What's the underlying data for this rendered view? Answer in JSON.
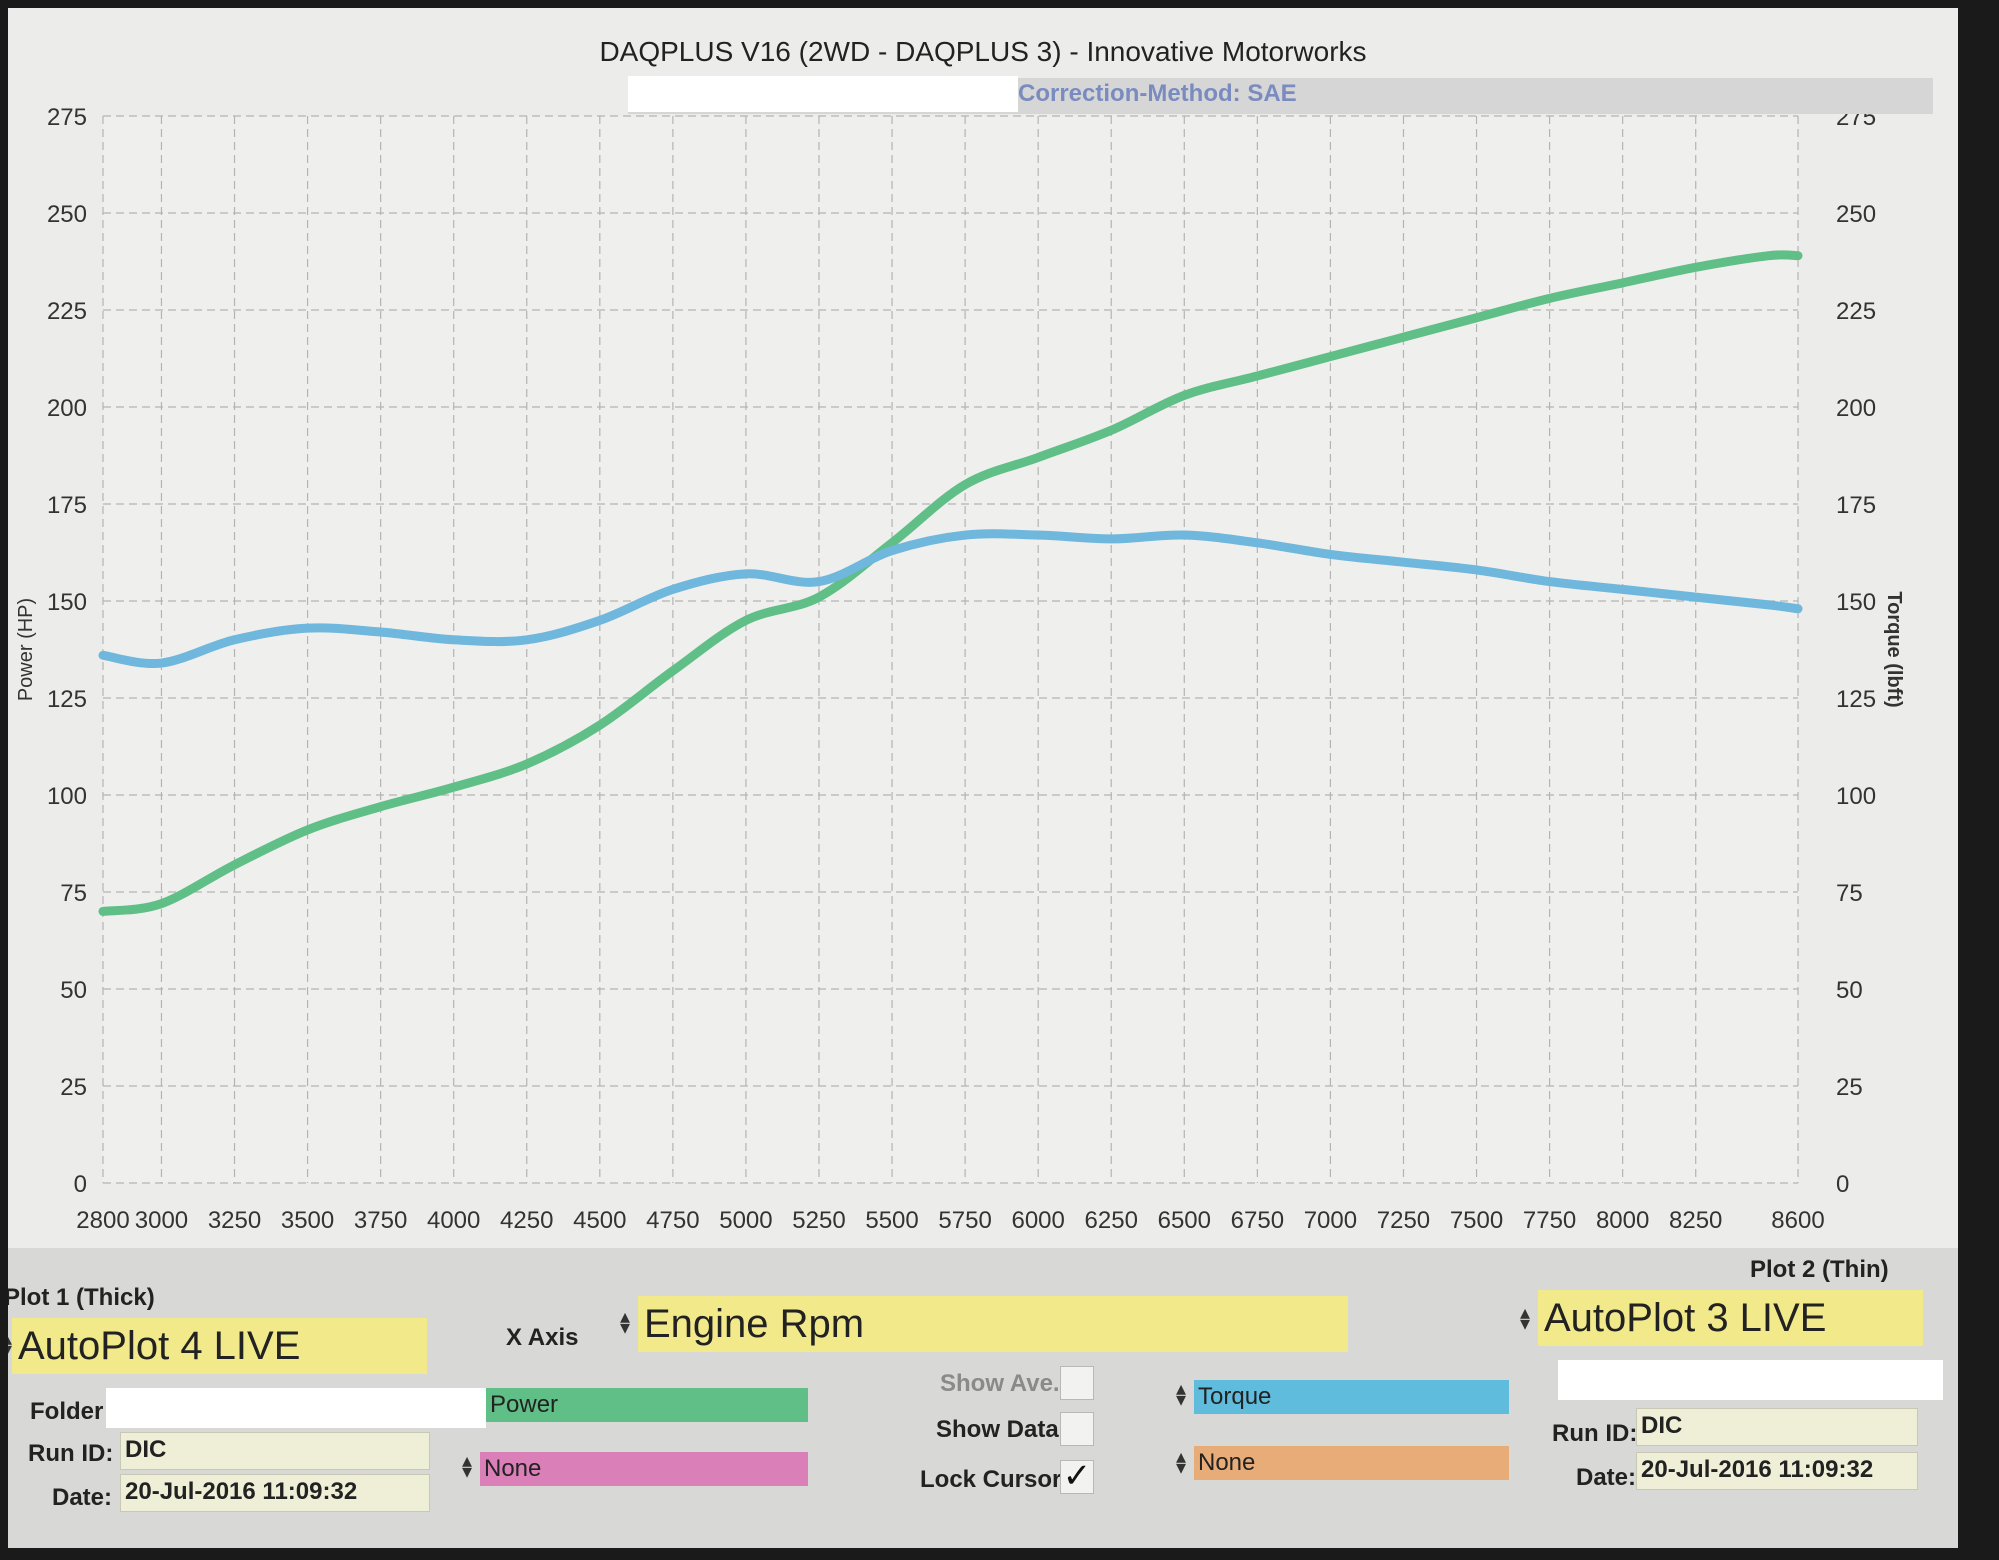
{
  "header": {
    "title": "DAQPLUS V16 (2WD - DAQPLUS 3) - Innovative Motorworks",
    "correction": "Correction-Method: SAE"
  },
  "chart_data": {
    "type": "line",
    "xlabel": "",
    "ylabel": "Power (HP)",
    "y2label": "Torque (lbft)",
    "xlim": [
      2800,
      8600
    ],
    "ylim": [
      0,
      275
    ],
    "y2lim": [
      0,
      275
    ],
    "grid": true,
    "x_ticks": [
      "2800",
      "3000",
      "3250",
      "3500",
      "3750",
      "4000",
      "4250",
      "4500",
      "4750",
      "5000",
      "5250",
      "5500",
      "5750",
      "6000",
      "6250",
      "6500",
      "6750",
      "7000",
      "7250",
      "7500",
      "7750",
      "8000",
      "8250",
      "8600"
    ],
    "y_ticks": [
      "0",
      "25",
      "50",
      "75",
      "100",
      "125",
      "150",
      "175",
      "200",
      "225",
      "250",
      "275"
    ],
    "y2_ticks": [
      "0",
      "25",
      "50",
      "75",
      "100",
      "125",
      "150",
      "175",
      "200",
      "225",
      "250",
      "275"
    ],
    "series": [
      {
        "name": "Power",
        "axis": "left",
        "color": "#5fbf86",
        "x": [
          2800,
          3000,
          3250,
          3500,
          3750,
          4000,
          4250,
          4500,
          4750,
          5000,
          5250,
          5500,
          5750,
          6000,
          6250,
          6500,
          6750,
          7000,
          7250,
          7500,
          7750,
          8000,
          8250,
          8500,
          8600
        ],
        "y": [
          70,
          72,
          82,
          91,
          97,
          102,
          108,
          118,
          132,
          145,
          151,
          165,
          180,
          187,
          194,
          203,
          208,
          213,
          218,
          223,
          228,
          232,
          236,
          239,
          239
        ]
      },
      {
        "name": "Torque",
        "axis": "right",
        "color": "#6fb7dc",
        "x": [
          2800,
          3000,
          3250,
          3500,
          3750,
          4000,
          4250,
          4500,
          4750,
          5000,
          5250,
          5500,
          5750,
          6000,
          6250,
          6500,
          6750,
          7000,
          7250,
          7500,
          7750,
          8000,
          8250,
          8500,
          8600
        ],
        "y": [
          136,
          134,
          140,
          143,
          142,
          140,
          140,
          145,
          153,
          157,
          155,
          163,
          167,
          167,
          166,
          167,
          165,
          162,
          160,
          158,
          155,
          153,
          151,
          149,
          148
        ]
      }
    ]
  },
  "panel": {
    "plot1_label": "Plot 1 (Thick)",
    "plot1_value": "AutoPlot 4 LIVE",
    "plot2_label": "Plot 2 (Thin)",
    "plot2_value": "AutoPlot 3 LIVE",
    "xaxis_label": "X Axis",
    "xaxis_value": "Engine Rpm",
    "folder_label": "Folder",
    "run_id_label": "Run ID:",
    "run_id_value": "DIC",
    "date_label": "Date:",
    "date_value": "20-Jul-2016 11:09:32",
    "run_id2_label": "Run ID:",
    "run_id2_value": "DIC",
    "date2_label": "Date:",
    "date2_value": "20-Jul-2016 11:09:32",
    "plot1_ch1": "Power",
    "plot1_ch2": "None",
    "plot2_ch1": "Torque",
    "plot2_ch2": "None",
    "show_ave": "Show Ave.",
    "show_data": "Show Data",
    "lock_cursor": "Lock Cursor",
    "ch_colors": {
      "power": "#5fbf86",
      "none1": "#db7fb8",
      "torque": "#5fbcdc",
      "none2": "#e8ac79"
    }
  }
}
